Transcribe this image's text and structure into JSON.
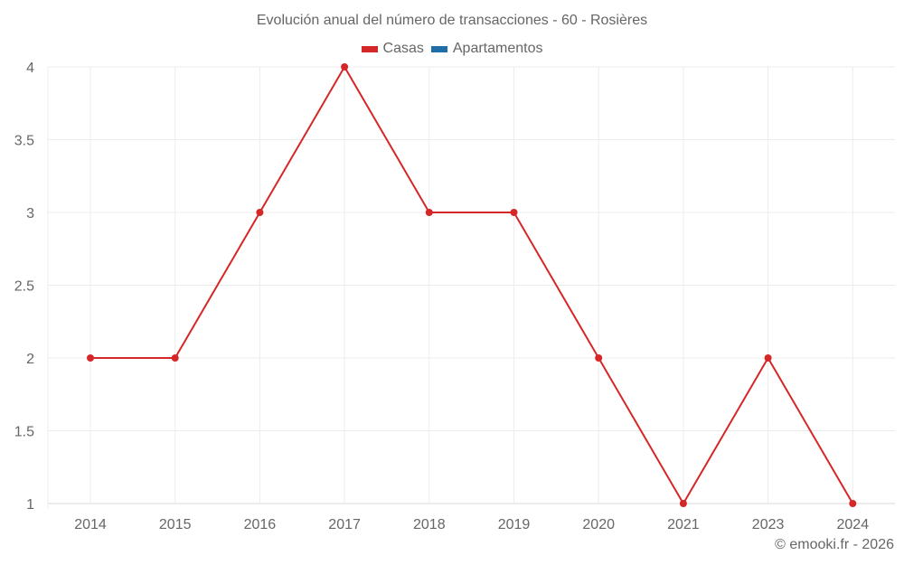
{
  "chart_data": {
    "type": "line",
    "title": "Evolución anual del número de transacciones - 60 - Rosières",
    "categories": [
      "2014",
      "2015",
      "2016",
      "2017",
      "2018",
      "2019",
      "2020",
      "2021",
      "2023",
      "2024"
    ],
    "series": [
      {
        "name": "Casas",
        "color": "#d62728",
        "values": [
          2,
          2,
          3,
          4,
          3,
          3,
          2,
          1,
          2,
          1
        ]
      },
      {
        "name": "Apartamentos",
        "color": "#1f6ea8",
        "values": []
      }
    ],
    "xlabel": "",
    "ylabel": "",
    "ylim": [
      1,
      4
    ],
    "yticks": [
      "1",
      "1.5",
      "2",
      "2.5",
      "3",
      "3.5",
      "4"
    ],
    "grid": true,
    "legend_position": "top"
  },
  "title": "Evolución anual del número de transacciones - 60 - Rosières",
  "legend": [
    {
      "label": "Casas",
      "color": "#d62728"
    },
    {
      "label": "Apartamentos",
      "color": "#1f6ea8"
    }
  ],
  "credit": "© emooki.fr - 2026"
}
